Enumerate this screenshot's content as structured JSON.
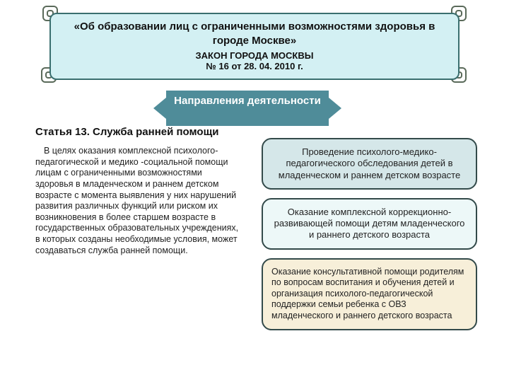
{
  "header": {
    "title": "«Об образовании лиц с ограниченными возможностями здоровья в городе Москве»",
    "law_line": "ЗАКОН ГОРОДА МОСКВЫ",
    "ref_line": "№ 16  от 28. 04. 2010 г."
  },
  "arrow_label": "Направления деятельности",
  "article": {
    "title": "Статья 13. Служба ранней помощи",
    "body": "В целях оказания комплексной психолого-педагогической и медико -социальной помощи лицам с ограниченными возможностями здоровья в младенческом и раннем детском возрасте с момента выявления у них нарушений развития различных функций или риском их возникновения в более старшем возрасте в государственных образовательных учреждениях, в которых созданы необходимые условия, может создаваться служба ранней помощи."
  },
  "boxes": {
    "box1": "Проведение психолого-медико-педагогического обследования детей в младенческом и раннем детском возрасте",
    "box2": "Оказание комплексной коррекционно-развивающей помощи детям младенческого и раннего детского возраста",
    "box3": "Оказание консультативной помощи родителям по вопросам воспитания и обучения детей и организация психолого-педагогической поддержки семьи ребенка с ОВЗ младенческого и раннего детского возраста"
  },
  "colors": {
    "header_bg": "#d3f0f3",
    "arrow_bg": "#4f8c99",
    "box1_bg": "#d5e7e9",
    "box2_bg": "#edf8f8",
    "box3_bg": "#f7efd9",
    "border": "#3a6f6f"
  }
}
